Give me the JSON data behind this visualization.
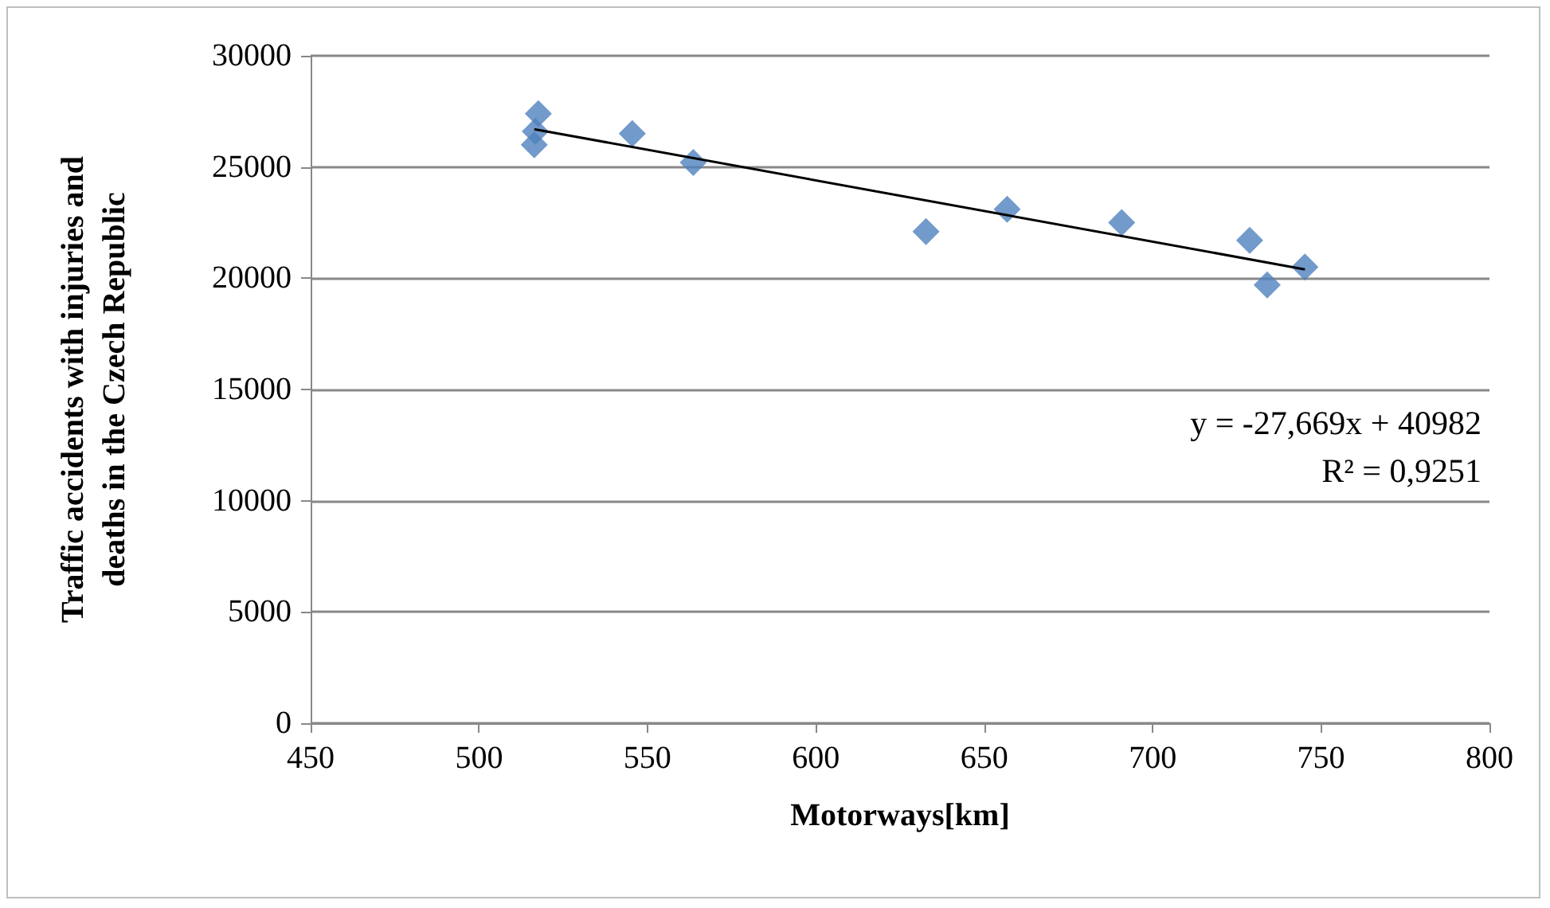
{
  "chart_data": {
    "type": "scatter",
    "xlabel": "Motorways[km]",
    "ylabel": "Traffic accidents with injuries and deaths in the Czech Republic",
    "series": [
      {
        "color": "#4f81bd",
        "marker": "diamond",
        "x": [
          517.6,
          516.7,
          516.4,
          545.5,
          563.6,
          632.7,
          656.8,
          690.8,
          728.8,
          734.0,
          745.2
        ],
        "values": [
          27400,
          26600,
          26000,
          26500,
          25200,
          22100,
          23100,
          22500,
          21700,
          19700,
          20500
        ]
      },
      {
        "type": "line",
        "color": "#000000",
        "marker": "none",
        "x": [
          516.4,
          745.2
        ],
        "values": [
          26700,
          20400
        ]
      }
    ],
    "annotations": [
      "y = -27,669x + 40982",
      "R² = 0,9251"
    ],
    "xlim": [
      450,
      800
    ],
    "xticks": [
      450,
      500,
      550,
      600,
      650,
      700,
      750,
      800
    ],
    "ylim": [
      0,
      30000
    ],
    "yticks": [
      0,
      5000,
      10000,
      15000,
      20000,
      25000,
      30000
    ],
    "grid": "y"
  }
}
